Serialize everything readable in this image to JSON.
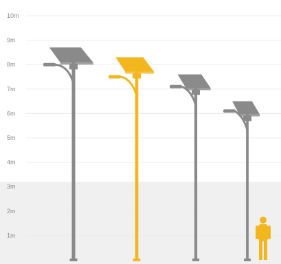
{
  "scale": {
    "unit": "m",
    "tick_labels": [
      "1m",
      "2m",
      "3m",
      "4m",
      "5m",
      "6m",
      "7m",
      "8m",
      "9m",
      "10m"
    ],
    "shaded_band_top_m": 3.2
  },
  "poles": [
    {
      "id": "pole-1",
      "panel_height_m": 8.7,
      "lamp_height_m": 8.0,
      "color": "#8a8a8a",
      "highlighted": false
    },
    {
      "id": "pole-2",
      "panel_height_m": 8.3,
      "lamp_height_m": 7.5,
      "color": "#f2b71f",
      "highlighted": true
    },
    {
      "id": "pole-3",
      "panel_height_m": 7.6,
      "lamp_height_m": 7.1,
      "color": "#8a8a8a",
      "highlighted": false
    },
    {
      "id": "pole-4",
      "panel_height_m": 6.5,
      "lamp_height_m": 6.1,
      "color": "#8a8a8a",
      "highlighted": false
    }
  ],
  "person": {
    "height_m": 1.8,
    "color": "#f2b71f"
  },
  "colors": {
    "band": "#f0f0f0",
    "grid": "#ececec",
    "pole_default": "#8a8a8a",
    "pole_highlight": "#f2b71f"
  }
}
